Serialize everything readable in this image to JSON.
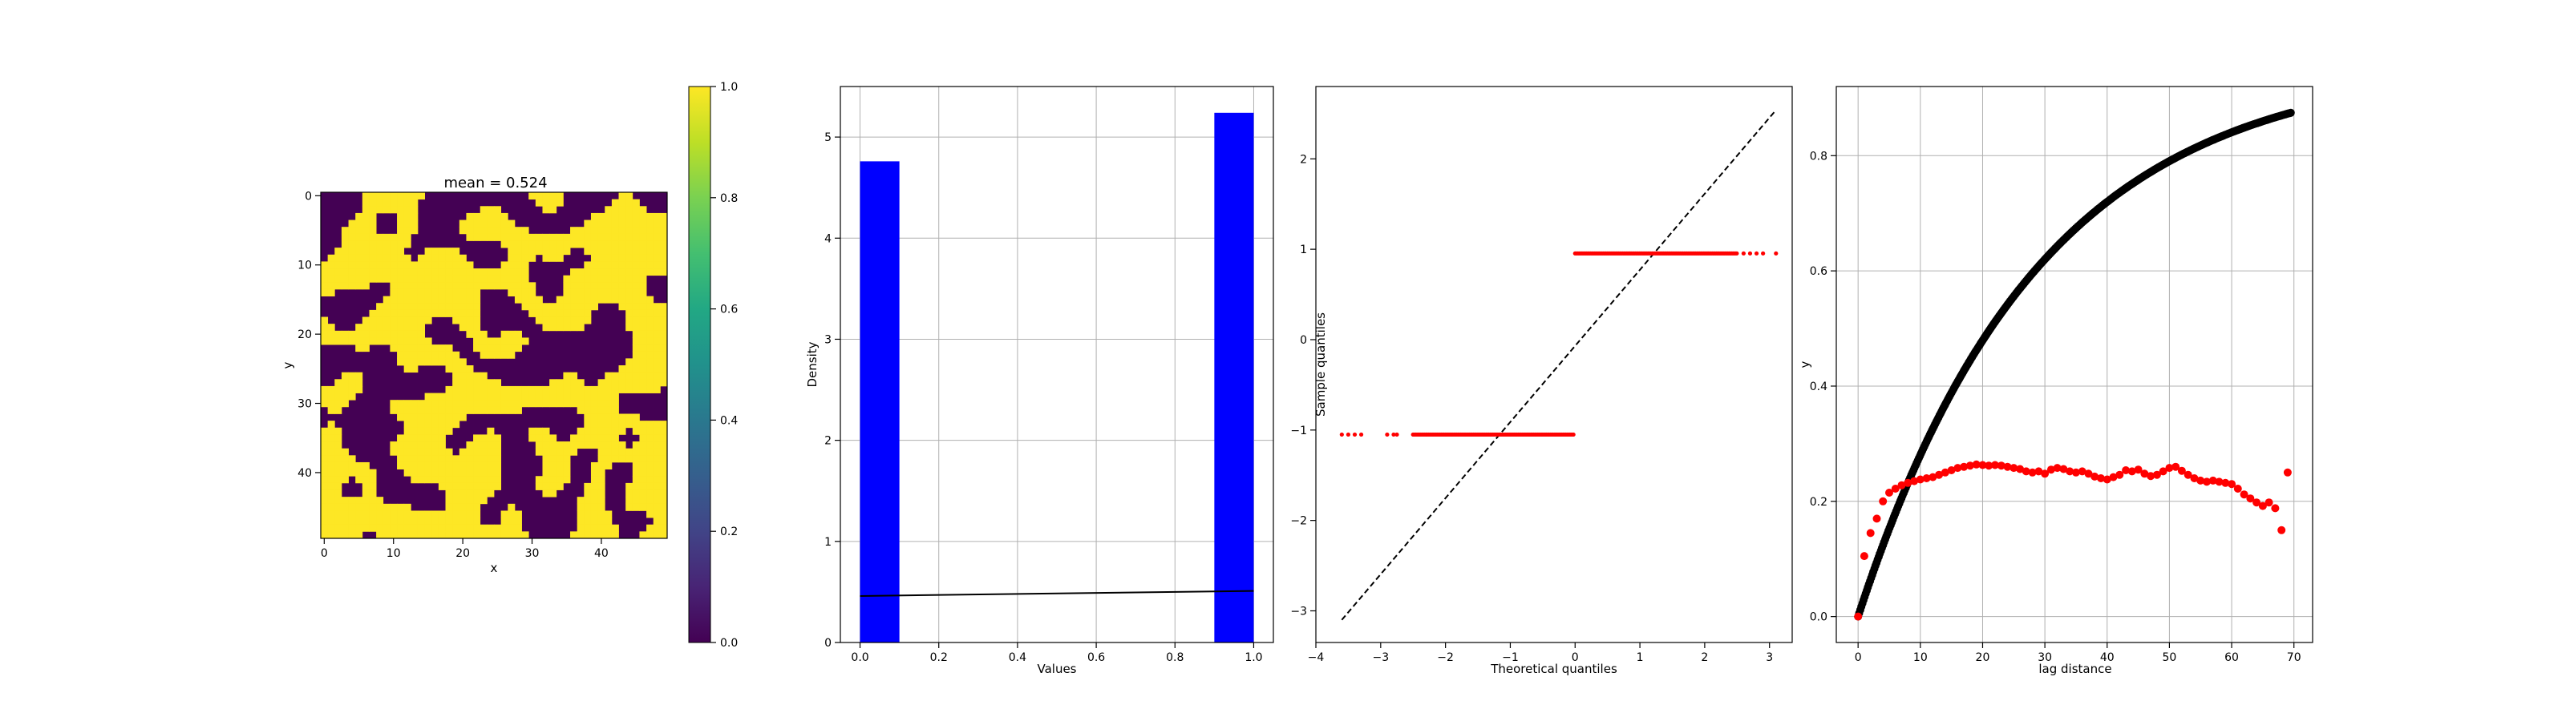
{
  "chart_data": [
    {
      "type": "heatmap",
      "title": "mean = 0.524",
      "xlabel": "x",
      "ylabel": "y",
      "grid_size": 50,
      "xticks": [
        "0",
        "10",
        "20",
        "30",
        "40"
      ],
      "yticks": [
        "0",
        "10",
        "20",
        "30",
        "40"
      ],
      "colorbar": {
        "range": [
          0,
          1
        ],
        "ticks": [
          "0.0",
          "0.2",
          "0.4",
          "0.6",
          "0.8",
          "1.0"
        ],
        "colormap": "viridis",
        "low_color": "#440154",
        "high_color": "#fde725"
      },
      "mean": 0.524,
      "grid": false
    },
    {
      "type": "bar",
      "xlabel": "Values",
      "ylabel": "Density",
      "xlim": [
        -0.05,
        1.05
      ],
      "ylim": [
        0,
        5.5
      ],
      "xticks": [
        "0.0",
        "0.2",
        "0.4",
        "0.6",
        "0.8",
        "1.0"
      ],
      "yticks": [
        "0",
        "1",
        "2",
        "3",
        "4",
        "5"
      ],
      "bars": [
        {
          "x0": 0.0,
          "x1": 0.1,
          "value": 4.76
        },
        {
          "x0": 0.9,
          "x1": 1.0,
          "value": 5.24
        }
      ],
      "bar_color": "#0000ff",
      "line": {
        "x": [
          0.0,
          1.0
        ],
        "y": [
          0.46,
          0.51
        ],
        "color": "#000000"
      },
      "grid": true
    },
    {
      "type": "scatter",
      "xlabel": "Theoretical quantiles",
      "ylabel": "Sample quantiles",
      "xlim": [
        -4.0,
        3.35
      ],
      "ylim": [
        -3.35,
        2.8
      ],
      "xticks": [
        "−4",
        "−3",
        "−2",
        "−1",
        "0",
        "1",
        "2",
        "3"
      ],
      "yticks": [
        "−3",
        "−2",
        "−1",
        "0",
        "1",
        "2"
      ],
      "groups": [
        {
          "y": -1.05,
          "x_dense": [
            -2.5,
            -0.02
          ],
          "x_sparse": [
            -3.6,
            -3.5,
            -3.4,
            -3.3,
            -2.9,
            -2.8,
            -2.75
          ]
        },
        {
          "y": 0.954,
          "x_dense": [
            0.0,
            2.5
          ],
          "x_sparse": [
            2.6,
            2.7,
            2.8,
            2.9,
            3.1
          ]
        }
      ],
      "point_color": "#ff0000",
      "reference_line": {
        "x": [
          -3.6,
          3.1
        ],
        "y": [
          -3.1,
          2.54
        ],
        "style": "dashed",
        "color": "#000000"
      },
      "grid": false
    },
    {
      "type": "scatter",
      "xlabel": "lag distance",
      "ylabel": "y",
      "xlim": [
        -3.5,
        73.0
      ],
      "ylim": [
        -0.045,
        0.92
      ],
      "xticks": [
        "0",
        "10",
        "20",
        "30",
        "40",
        "50",
        "60",
        "70"
      ],
      "yticks": [
        "0.0",
        "0.2",
        "0.4",
        "0.6",
        "0.8"
      ],
      "series": [
        {
          "color": "#000000",
          "model": "exponential",
          "sill": 0.962,
          "range": 29.0,
          "x_range": [
            0,
            69.5
          ],
          "count": 400
        },
        {
          "color": "#ff0000",
          "x": [
            0,
            1,
            2,
            3,
            4,
            5,
            6,
            7,
            8,
            9,
            10,
            11,
            12,
            13,
            14,
            15,
            16,
            17,
            18,
            19,
            20,
            21,
            22,
            23,
            24,
            25,
            26,
            27,
            28,
            29,
            30,
            31,
            32,
            33,
            34,
            35,
            36,
            37,
            38,
            39,
            40,
            41,
            42,
            43,
            44,
            45,
            46,
            47,
            48,
            49,
            50,
            51,
            52,
            53,
            54,
            55,
            56,
            57,
            58,
            59,
            60,
            61,
            62,
            63,
            64,
            65,
            66,
            67,
            68,
            69
          ],
          "y": [
            0.0,
            0.105,
            0.145,
            0.17,
            0.2,
            0.215,
            0.222,
            0.228,
            0.232,
            0.235,
            0.238,
            0.24,
            0.242,
            0.246,
            0.25,
            0.254,
            0.258,
            0.26,
            0.262,
            0.264,
            0.263,
            0.262,
            0.263,
            0.262,
            0.26,
            0.258,
            0.256,
            0.252,
            0.25,
            0.252,
            0.248,
            0.255,
            0.258,
            0.256,
            0.252,
            0.25,
            0.252,
            0.248,
            0.243,
            0.24,
            0.238,
            0.242,
            0.246,
            0.254,
            0.252,
            0.255,
            0.248,
            0.244,
            0.246,
            0.252,
            0.258,
            0.26,
            0.253,
            0.246,
            0.24,
            0.236,
            0.234,
            0.236,
            0.234,
            0.232,
            0.23,
            0.222,
            0.212,
            0.205,
            0.198,
            0.192,
            0.198,
            0.188,
            0.15,
            0.25
          ]
        }
      ],
      "grid": true
    }
  ]
}
